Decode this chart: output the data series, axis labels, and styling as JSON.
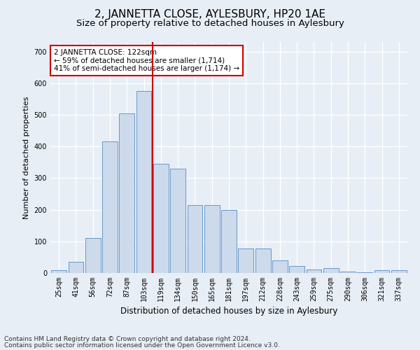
{
  "title": "2, JANNETTA CLOSE, AYLESBURY, HP20 1AE",
  "subtitle": "Size of property relative to detached houses in Aylesbury",
  "xlabel": "Distribution of detached houses by size in Aylesbury",
  "ylabel": "Number of detached properties",
  "categories": [
    "25sqm",
    "41sqm",
    "56sqm",
    "72sqm",
    "87sqm",
    "103sqm",
    "119sqm",
    "134sqm",
    "150sqm",
    "165sqm",
    "181sqm",
    "197sqm",
    "212sqm",
    "228sqm",
    "243sqm",
    "259sqm",
    "275sqm",
    "290sqm",
    "306sqm",
    "321sqm",
    "337sqm"
  ],
  "values": [
    8,
    35,
    110,
    415,
    505,
    575,
    345,
    330,
    215,
    215,
    200,
    78,
    78,
    40,
    22,
    12,
    15,
    5,
    2,
    8,
    8
  ],
  "bar_color": "#ccdaeb",
  "bar_edge_color": "#6699cc",
  "vline_color": "#cc0000",
  "vline_index": 6,
  "annotation_text": "2 JANNETTA CLOSE: 122sqm\n← 59% of detached houses are smaller (1,714)\n41% of semi-detached houses are larger (1,174) →",
  "annotation_box_facecolor": "#ffffff",
  "annotation_box_edgecolor": "#cc0000",
  "ylim": [
    0,
    730
  ],
  "yticks": [
    0,
    100,
    200,
    300,
    400,
    500,
    600,
    700
  ],
  "background_color": "#e8eef5",
  "grid_color": "#ffffff",
  "title_fontsize": 11,
  "subtitle_fontsize": 9.5,
  "ylabel_fontsize": 8,
  "xlabel_fontsize": 8.5,
  "tick_fontsize": 7,
  "annotation_fontsize": 7.5,
  "footer_fontsize": 6.5,
  "footer_line1": "Contains HM Land Registry data © Crown copyright and database right 2024.",
  "footer_line2": "Contains public sector information licensed under the Open Government Licence v3.0."
}
